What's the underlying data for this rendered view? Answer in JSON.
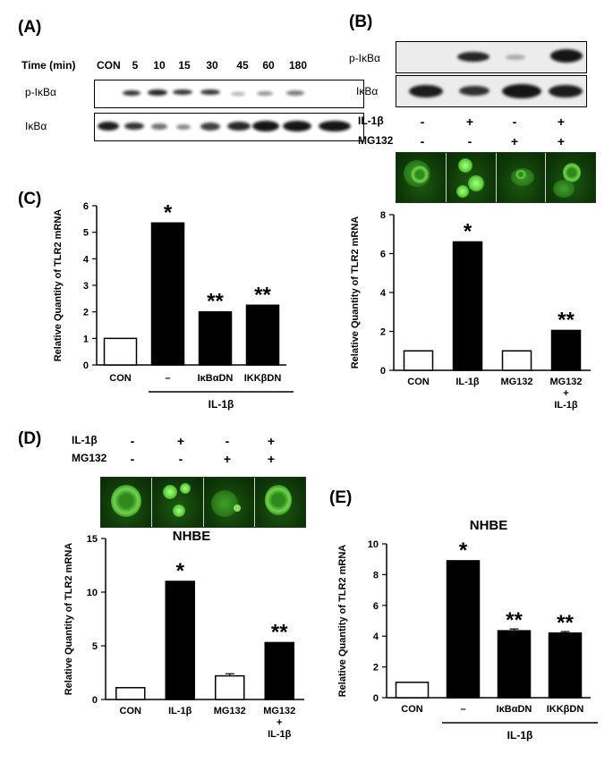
{
  "panels": {
    "A": {
      "label": "(A)",
      "time_header": "Time (min)",
      "time_points": [
        "CON",
        "5",
        "10",
        "15",
        "30",
        "45",
        "60",
        "180"
      ],
      "rows": [
        "p-IκBα",
        "IκBα"
      ]
    },
    "B": {
      "label": "(B)",
      "rows": [
        "p-IκBα",
        "IκBα"
      ],
      "treatments": [
        {
          "name": "IL-1β",
          "signs": [
            "-",
            "+",
            "-",
            "+"
          ]
        },
        {
          "name": "MG132",
          "signs": [
            "-",
            "-",
            "+",
            "+"
          ]
        }
      ]
    },
    "C": {
      "label": "(C)"
    },
    "D": {
      "label": "(D)",
      "treatments": [
        {
          "name": "IL-1β",
          "signs": [
            "-",
            "+",
            "-",
            "+"
          ]
        },
        {
          "name": "MG132",
          "signs": [
            "-",
            "-",
            "+",
            "+"
          ]
        }
      ]
    },
    "E": {
      "label": "(E)"
    }
  },
  "chart_data": [
    {
      "id": "C",
      "type": "bar",
      "ylabel": "Relative Quantity of TLR2 mRNA",
      "ylim": [
        0,
        6
      ],
      "yticks": [
        0,
        1,
        2,
        3,
        4,
        5,
        6
      ],
      "categories": [
        "CON",
        "–",
        "IκBαDN",
        "IKKβDN"
      ],
      "values": [
        1.0,
        5.35,
        2.0,
        2.25
      ],
      "colors": [
        "#ffffff",
        "#000000",
        "#000000",
        "#000000"
      ],
      "annotations": [
        "",
        "*",
        "**",
        "**"
      ],
      "group_label": "IL-1β",
      "title": ""
    },
    {
      "id": "B",
      "type": "bar",
      "ylabel": "Relative Quantity of TLR2 mRNA",
      "ylim": [
        0,
        8
      ],
      "yticks": [
        0,
        2,
        4,
        6,
        8
      ],
      "categories": [
        "CON",
        "IL-1β",
        "MG132",
        "MG132\n+\nIL-1β"
      ],
      "values": [
        1.0,
        6.6,
        1.0,
        2.05
      ],
      "colors": [
        "#ffffff",
        "#000000",
        "#ffffff",
        "#000000"
      ],
      "annotations": [
        "",
        "*",
        "",
        "**"
      ],
      "title": ""
    },
    {
      "id": "D",
      "type": "bar",
      "title": "NHBE",
      "ylabel": "Relative Quantity of TLR2 mRNA",
      "ylim": [
        0,
        15
      ],
      "yticks": [
        0,
        5,
        10,
        15
      ],
      "categories": [
        "CON",
        "IL-1β",
        "MG132",
        "MG132\n+\nIL-1β"
      ],
      "values": [
        1.1,
        11.0,
        2.2,
        5.3
      ],
      "errors": [
        0,
        0,
        0.2,
        0
      ],
      "colors": [
        "#ffffff",
        "#000000",
        "#ffffff",
        "#000000"
      ],
      "annotations": [
        "",
        "*",
        "",
        "**"
      ]
    },
    {
      "id": "E",
      "type": "bar",
      "title": "NHBE",
      "ylabel": "Relative Quantity of TLR2 mRNA",
      "ylim": [
        0,
        10
      ],
      "yticks": [
        0,
        2,
        4,
        6,
        8,
        10
      ],
      "categories": [
        "CON",
        "–",
        "IκBαDN",
        "IKKβDN"
      ],
      "values": [
        1.0,
        8.9,
        4.35,
        4.2
      ],
      "errors": [
        0,
        0,
        0.12,
        0.1
      ],
      "colors": [
        "#ffffff",
        "#000000",
        "#000000",
        "#000000"
      ],
      "annotations": [
        "",
        "*",
        "**",
        "**"
      ],
      "group_label": "IL-1β"
    }
  ]
}
